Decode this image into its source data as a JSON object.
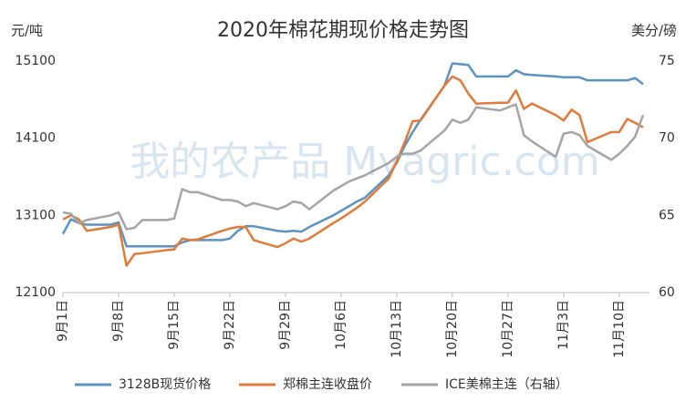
{
  "chart_data": {
    "type": "line",
    "title": "2020年棉花期现价格走势图",
    "y_label": "元/吨",
    "y2_label": "美分/磅",
    "watermark": "我的农产品 Myagric.com",
    "x": [
      0,
      1,
      2,
      3,
      6,
      7,
      8,
      9,
      10,
      13,
      14,
      15,
      16,
      17,
      20,
      21,
      22,
      23,
      24,
      27,
      28,
      29,
      30,
      31,
      34,
      35,
      36,
      37,
      38,
      41,
      42,
      43,
      44,
      45,
      48,
      49,
      50,
      51,
      52,
      55,
      56,
      57,
      58,
      59,
      62,
      63,
      64,
      65,
      66,
      69,
      70,
      71,
      72,
      73
    ],
    "xlim": [
      0,
      73
    ],
    "xticks": [
      {
        "value": 0,
        "label": "9月1日"
      },
      {
        "value": 7,
        "label": "9月8日"
      },
      {
        "value": 14,
        "label": "9月15日"
      },
      {
        "value": 21,
        "label": "9月22日"
      },
      {
        "value": 28,
        "label": "9月29日"
      },
      {
        "value": 35,
        "label": "10月6日"
      },
      {
        "value": 42,
        "label": "10月13日"
      },
      {
        "value": 49,
        "label": "10月20日"
      },
      {
        "value": 56,
        "label": "10月27日"
      },
      {
        "value": 63,
        "label": "11月3日"
      },
      {
        "value": 70,
        "label": "11月10日"
      }
    ],
    "ylim": [
      12100,
      15100
    ],
    "yticks": [
      12100,
      13100,
      14100,
      15100
    ],
    "y2lim": [
      60,
      75
    ],
    "y2ticks": [
      60,
      65,
      70,
      75
    ],
    "legend": "bottom",
    "series": [
      {
        "name": "3128B现货价格",
        "color": "#5b93c2",
        "values": [
          12860,
          13050,
          13000,
          12980,
          12980,
          13010,
          12700,
          12700,
          12700,
          12700,
          12700,
          12750,
          12780,
          12780,
          12780,
          12800,
          12900,
          12960,
          12960,
          12900,
          12890,
          12900,
          12890,
          12950,
          13100,
          13160,
          13220,
          13280,
          13330,
          13620,
          13780,
          14000,
          14180,
          14340,
          14780,
          15070,
          15060,
          15050,
          14900,
          14900,
          14900,
          14980,
          14930,
          14920,
          14900,
          14890,
          14890,
          14890,
          14850,
          14850,
          14850,
          14850,
          14880,
          14800
        ]
      },
      {
        "name": "郑棉主连收盘价",
        "color": "#e07b39",
        "values": [
          13050,
          13100,
          13050,
          12900,
          12950,
          12980,
          12450,
          12600,
          12610,
          12650,
          12660,
          12800,
          12780,
          12790,
          12900,
          12930,
          12950,
          12950,
          12780,
          12690,
          12740,
          12800,
          12760,
          12800,
          13000,
          13060,
          13130,
          13200,
          13280,
          13580,
          13800,
          14050,
          14320,
          14330,
          14780,
          14900,
          14850,
          14680,
          14550,
          14560,
          14560,
          14720,
          14480,
          14550,
          14400,
          14330,
          14470,
          14400,
          14050,
          14180,
          14180,
          14350,
          14300,
          14240
        ]
      },
      {
        "name": "ICE美棉主连（右轴）",
        "color": "#a5a5a5",
        "axis": "y2",
        "values": [
          65.2,
          65.1,
          64.5,
          64.7,
          65.0,
          65.2,
          64.1,
          64.2,
          64.7,
          64.7,
          64.8,
          66.7,
          66.5,
          66.5,
          66.0,
          66.0,
          65.9,
          65.6,
          65.8,
          65.4,
          65.6,
          65.9,
          65.8,
          65.4,
          66.6,
          66.9,
          67.2,
          67.4,
          67.6,
          68.4,
          68.8,
          69.0,
          69.0,
          69.2,
          70.5,
          71.2,
          71.0,
          71.2,
          72.0,
          71.8,
          72.0,
          72.2,
          70.2,
          69.8,
          68.8,
          70.3,
          70.4,
          70.2,
          69.5,
          68.6,
          69.0,
          69.5,
          70.1,
          71.5
        ]
      }
    ]
  }
}
